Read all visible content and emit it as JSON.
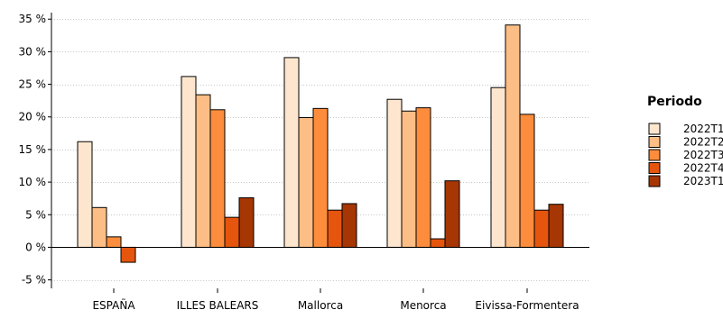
{
  "chart_data": {
    "type": "bar",
    "categories": [
      "ESPAÑA",
      "ILLES BALEARS",
      "Mallorca",
      "Menorca",
      "Eivissa-Formentera"
    ],
    "series": [
      {
        "name": "2022T1",
        "color": "#fee6ce",
        "values": [
          16.2,
          26.2,
          29.1,
          22.7,
          24.5
        ]
      },
      {
        "name": "2022T2",
        "color": "#fdbe85",
        "values": [
          6.1,
          23.4,
          19.9,
          20.9,
          34.1
        ]
      },
      {
        "name": "2022T3",
        "color": "#fd8d3c",
        "values": [
          1.6,
          21.1,
          21.3,
          21.4,
          20.4
        ]
      },
      {
        "name": "2022T4",
        "color": "#e6550d",
        "values": [
          -2.3,
          4.6,
          5.7,
          1.3,
          5.7
        ]
      },
      {
        "name": "2023T1",
        "color": "#a63603",
        "values": [
          null,
          7.6,
          6.7,
          10.2,
          6.6
        ]
      }
    ],
    "y_ticks": [
      "-5 %",
      "0 %",
      "5 %",
      "10 %",
      "15 %",
      "20 %",
      "25 %",
      "30 %",
      "35 %"
    ],
    "y_tick_values": [
      -5,
      0,
      5,
      10,
      15,
      20,
      25,
      30,
      35
    ],
    "ylim": [
      -6.3,
      36
    ],
    "grid": true,
    "legend": {
      "title": "Periodo",
      "placement": "right"
    }
  }
}
